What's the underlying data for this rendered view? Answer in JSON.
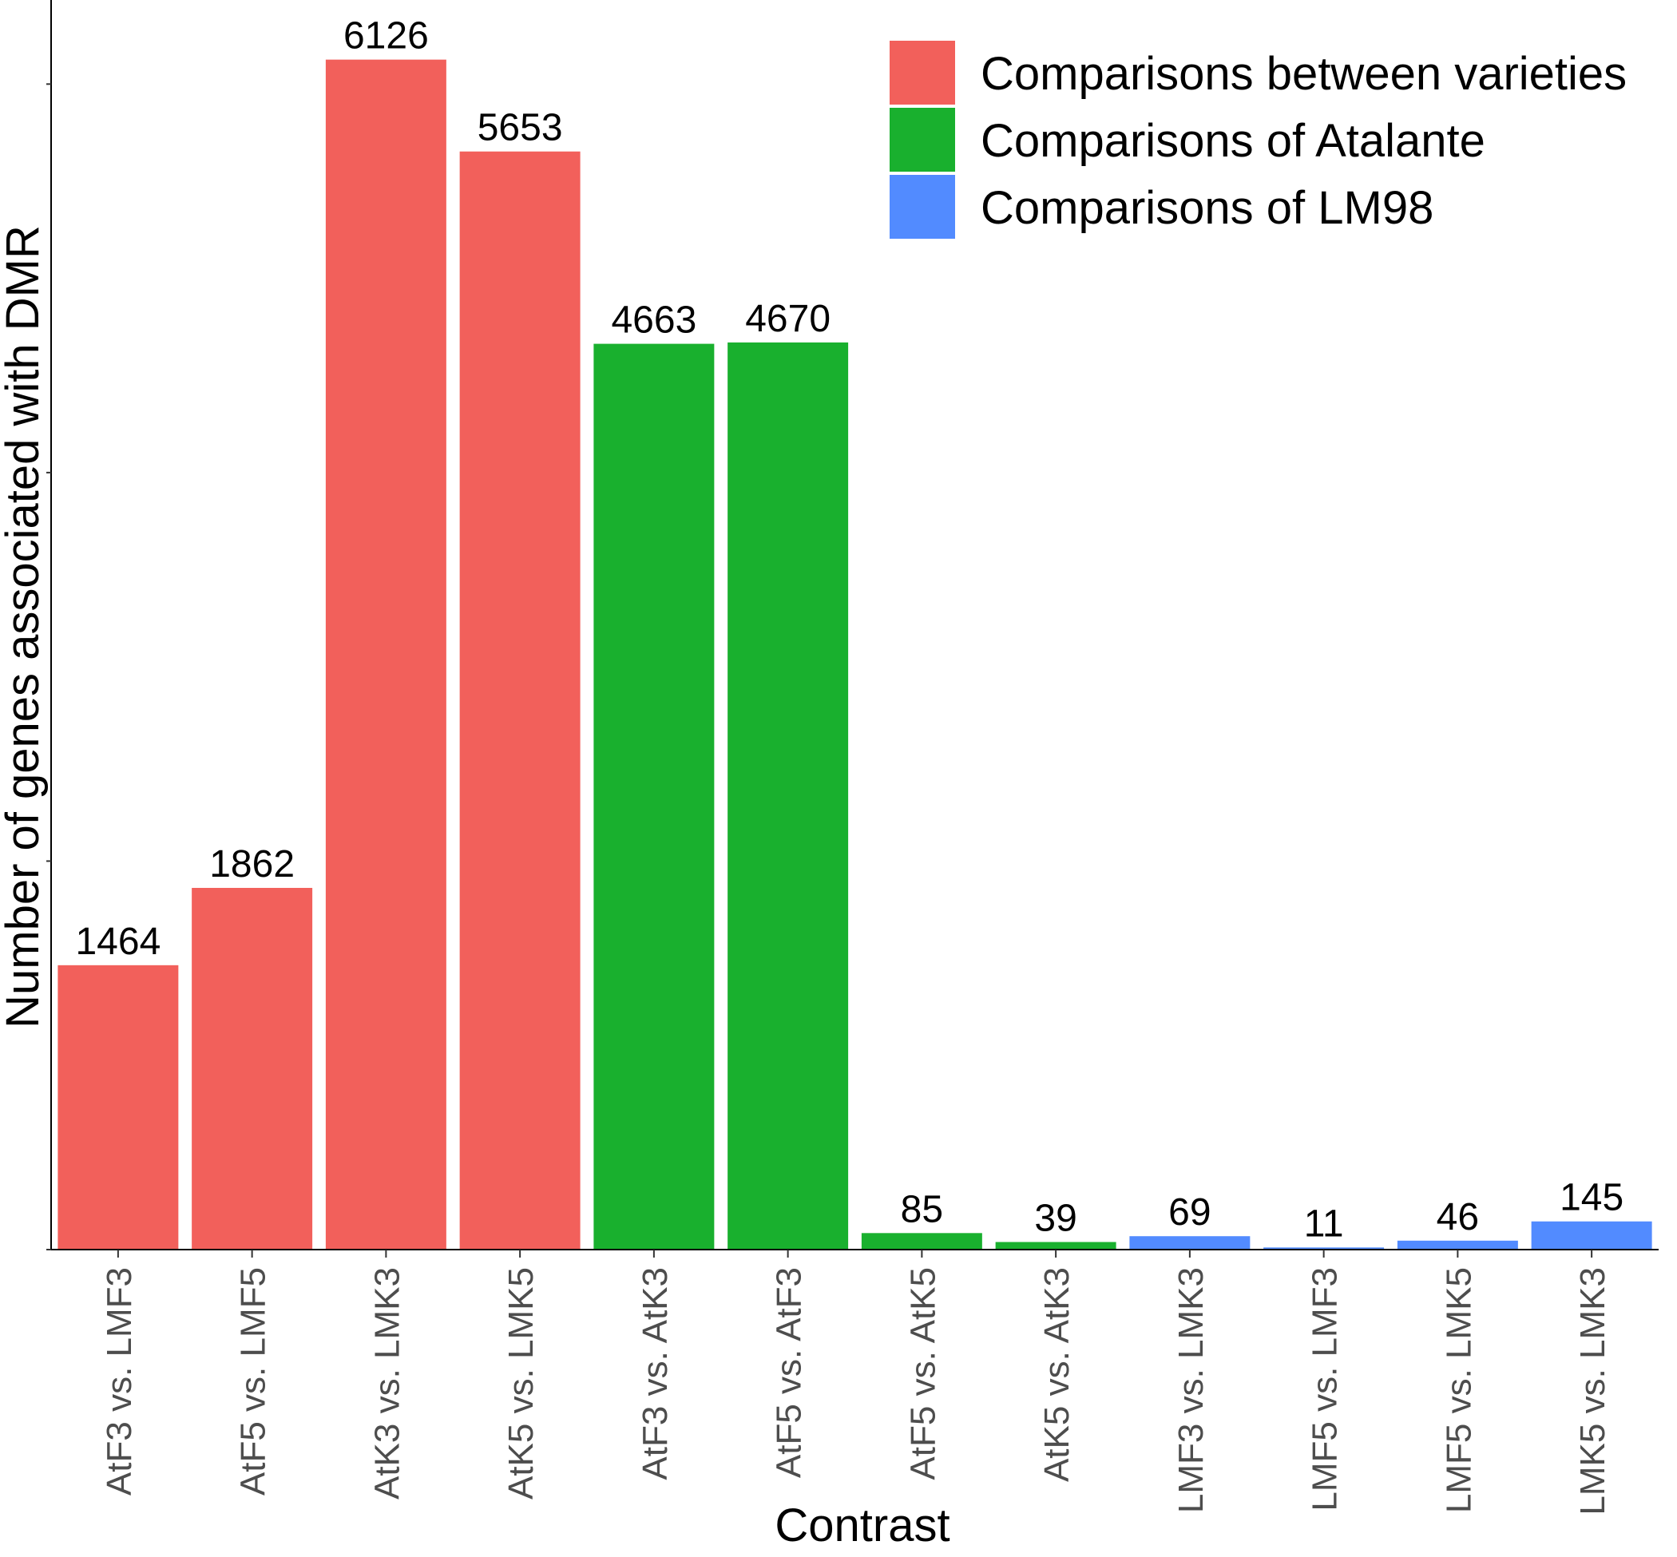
{
  "chart_data": {
    "type": "bar",
    "xlabel": "Contrast",
    "ylabel": "Number of genes associated with DMR",
    "ylim": [
      0,
      6400
    ],
    "y_ticks": [
      0,
      2000,
      4000,
      6000
    ],
    "y_tick_labels_shown": false,
    "grid": false,
    "legend_position": "top-right",
    "categories": [
      "AtF3 vs. LMF3",
      "AtF5 vs. LMF5",
      "AtK3 vs. LMK3",
      "AtK5 vs. LMK5",
      "AtF3 vs. AtK3",
      "AtF5 vs. AtF3",
      "AtF5 vs. AtK5",
      "AtK5 vs. AtK3",
      "LMF3 vs. LMK3",
      "LMF5 vs. LMF3",
      "LMF5 vs. LMK5",
      "LMK5 vs. LMK3"
    ],
    "values": [
      1464,
      1862,
      6126,
      5653,
      4663,
      4670,
      85,
      39,
      69,
      11,
      46,
      145
    ],
    "value_labels": [
      "1464",
      "1862",
      "6126",
      "5653",
      "4663",
      "4670",
      "85",
      "39",
      "69",
      "11",
      "46",
      "145"
    ],
    "groups": [
      0,
      0,
      0,
      0,
      1,
      1,
      1,
      1,
      2,
      2,
      2,
      2
    ],
    "series": [
      {
        "name": "Comparisons between varieties",
        "color": "#F2605B"
      },
      {
        "name": "Comparisons of Atalante",
        "color": "#19B02E"
      },
      {
        "name": "Comparisons of LM98",
        "color": "#528BFF"
      }
    ]
  }
}
